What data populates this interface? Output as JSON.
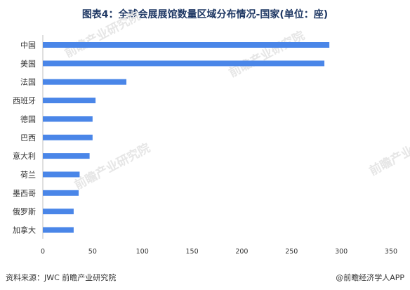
{
  "title": "图表4：全球会展展馆数量区域分布情况-国家(单位：座)",
  "source": "资料来源：JWC 前瞻产业研究院",
  "credit": "@前瞻经济学人APP",
  "watermark": "前瞻产业研究院",
  "colors": {
    "bar": "#4a86e8",
    "title": "#1f3864"
  },
  "chart_data": {
    "type": "bar",
    "orientation": "horizontal",
    "categories": [
      "中国",
      "美国",
      "法国",
      "西班牙",
      "德国",
      "巴西",
      "意大利",
      "荷兰",
      "墨西哥",
      "俄罗斯",
      "加拿大"
    ],
    "values": [
      288,
      283,
      84,
      53,
      50,
      50,
      47,
      37,
      36,
      31,
      31
    ],
    "xlim": [
      0,
      350
    ],
    "xticks": [
      "0",
      "50",
      "100",
      "150",
      "200",
      "250",
      "300",
      "350"
    ],
    "grid": false,
    "legend": "none"
  }
}
